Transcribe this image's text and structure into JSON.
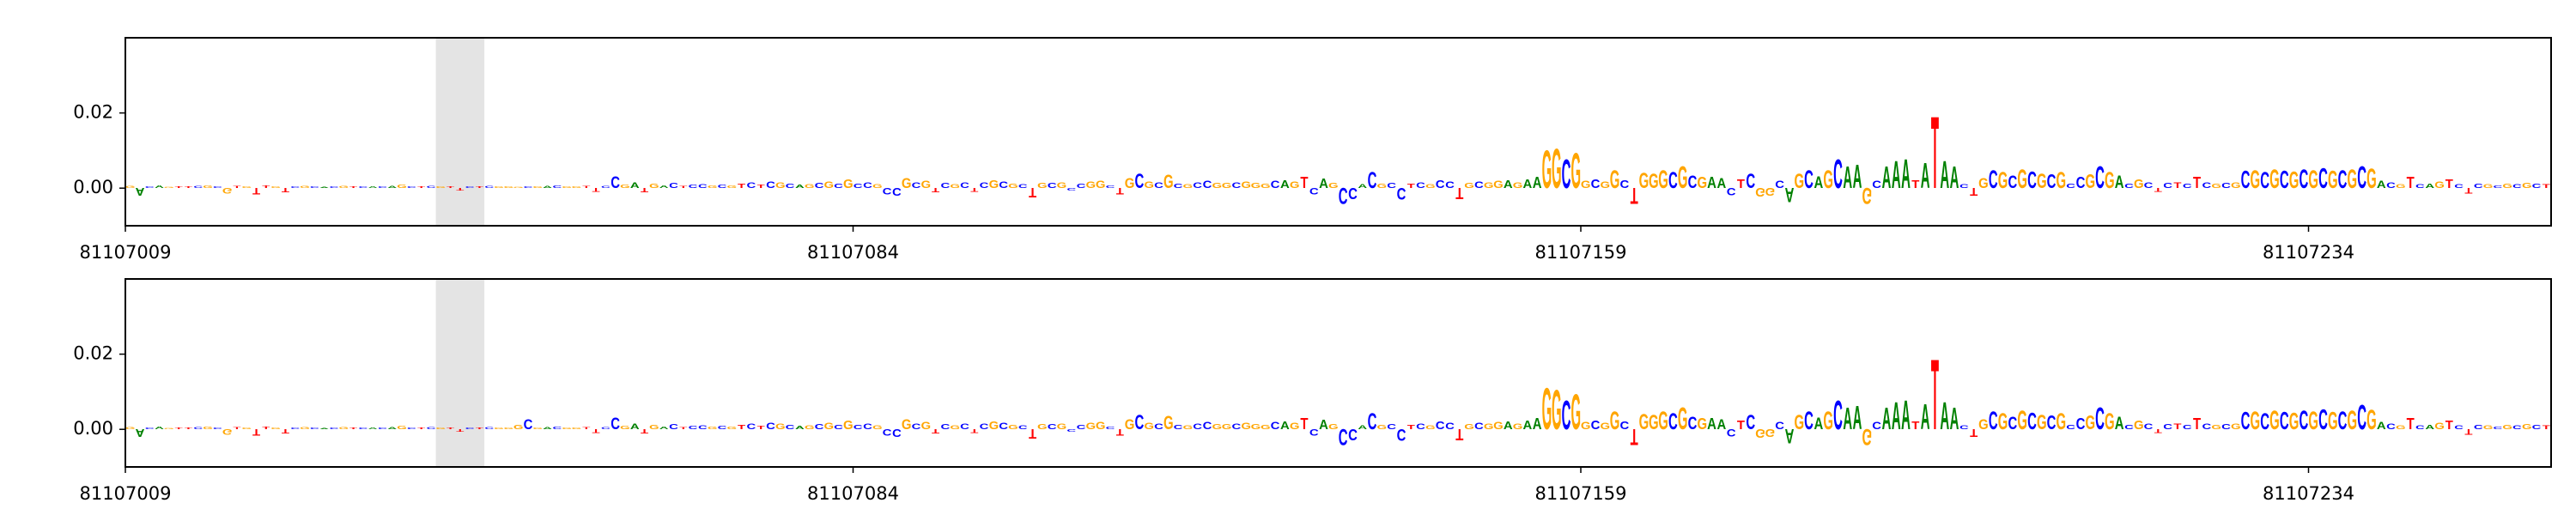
{
  "chart_data": {
    "type": "logo",
    "xlim": [
      81107009,
      81107259
    ],
    "xticks": [
      81107009,
      81107084,
      81107159,
      81107234
    ],
    "ylim": [
      -0.01,
      0.04
    ],
    "yticks": [
      {
        "value": 0,
        "label": "0.00"
      },
      {
        "value": 0.02,
        "label": "0.02"
      }
    ],
    "highlight": [
      81107041,
      81107046
    ],
    "colors": {
      "A": "#008000",
      "C": "#0000ff",
      "G": "#ffa500",
      "T": "#ff0000"
    },
    "letters": [
      "G",
      "A",
      "C",
      "A",
      "G",
      "T",
      "T",
      "C",
      "G",
      "C",
      "G",
      "T",
      "G",
      "T",
      "T",
      "G",
      "T",
      "C",
      "G",
      "C",
      "A",
      "C",
      "G",
      "T",
      "C",
      "A",
      "C",
      "A",
      "G",
      "C",
      "T",
      "C",
      "G",
      "T",
      "T",
      "C",
      "T",
      "C",
      "G",
      "G",
      "G",
      "C",
      "G",
      "A",
      "C",
      "G",
      "G",
      "T",
      "T",
      "C",
      "C",
      "G",
      "A",
      "T",
      "G",
      "A",
      "C",
      "T",
      "C",
      "C",
      "G",
      "C",
      "G",
      "T",
      "C",
      "T",
      "C",
      "G",
      "C",
      "A",
      "G",
      "C",
      "G",
      "C",
      "G",
      "C",
      "C",
      "G",
      "C",
      "C",
      "G",
      "C",
      "G",
      "T",
      "C",
      "G",
      "C",
      "T",
      "C",
      "G",
      "C",
      "G",
      "C",
      "T",
      "G",
      "C",
      "G",
      "C",
      "C",
      "G",
      "G",
      "C",
      "T",
      "G",
      "C",
      "G",
      "C",
      "G",
      "C",
      "G",
      "C",
      "C",
      "G",
      "G",
      "C",
      "G",
      "G",
      "G",
      "C",
      "A",
      "G",
      "T",
      "C",
      "A",
      "G",
      "C",
      "C",
      "A",
      "C",
      "G",
      "C",
      "C",
      "T",
      "C",
      "G",
      "C",
      "C",
      "T",
      "G",
      "C",
      "G",
      "G",
      "A",
      "G",
      "A",
      "A",
      "G",
      "G",
      "C",
      "G",
      "G",
      "C",
      "G",
      "G",
      "C",
      "T",
      "G",
      "G",
      "G",
      "C",
      "G",
      "C",
      "G",
      "A",
      "A",
      "C",
      "T",
      "C",
      "G",
      "G",
      "C",
      "A",
      "G",
      "C",
      "A",
      "G",
      "C",
      "A",
      "A",
      "G",
      "C",
      "A",
      "A",
      "A",
      "T",
      "A",
      "T",
      "A",
      "A",
      "C",
      "T",
      "G",
      "C",
      "G",
      "C",
      "G",
      "C",
      "G",
      "C",
      "G",
      "C",
      "C",
      "G",
      "C",
      "G",
      "A",
      "C",
      "G",
      "C",
      "T",
      "C",
      "T",
      "C",
      "T",
      "C",
      "G",
      "C",
      "G",
      "C",
      "G",
      "C",
      "G",
      "C",
      "G",
      "C",
      "G",
      "C",
      "G",
      "C",
      "G",
      "C",
      "G",
      "A",
      "C",
      "G",
      "T",
      "C",
      "A",
      "G",
      "T",
      "C",
      "T",
      "C",
      "G",
      "C",
      "G",
      "C",
      "G",
      "C",
      "T"
    ],
    "panels": [
      {
        "values": [
          0.0006,
          -0.0022,
          0.0004,
          0.0008,
          0.0003,
          0.0004,
          0.0005,
          0.0006,
          0.0007,
          0.0005,
          -0.0016,
          0.0006,
          0.0005,
          -0.0018,
          0.0007,
          0.0005,
          -0.0012,
          0.0005,
          0.0006,
          0.0004,
          0.0003,
          0.0005,
          0.0006,
          0.0004,
          0.0005,
          0.0005,
          0.0004,
          0.0006,
          0.0009,
          0.0004,
          0.0005,
          0.0006,
          0.0004,
          0.0005,
          -0.0008,
          0.0005,
          0.0004,
          0.0006,
          0.0005,
          0.0004,
          0.0003,
          0.0005,
          0.0004,
          0.0006,
          0.0007,
          0.0005,
          0.0004,
          0.0006,
          -0.0011,
          0.0006,
          0.0032,
          0.0009,
          0.0015,
          -0.0012,
          0.0012,
          0.0008,
          0.0014,
          0.0006,
          0.0009,
          0.0011,
          0.0007,
          0.0009,
          0.0008,
          0.0012,
          0.0015,
          0.0009,
          0.0018,
          0.0016,
          0.0012,
          0.0009,
          0.0011,
          0.0013,
          0.0019,
          0.0012,
          0.0024,
          0.0012,
          0.0016,
          0.001,
          -0.0018,
          -0.0022,
          0.0028,
          0.0015,
          0.002,
          -0.0012,
          0.0014,
          0.0011,
          0.0016,
          -0.001,
          0.0015,
          0.0022,
          0.0018,
          0.0012,
          0.001,
          -0.0026,
          0.0014,
          0.0013,
          0.0015,
          -0.0008,
          0.0012,
          0.0018,
          0.002,
          0.0008,
          -0.0018,
          0.0028,
          0.004,
          0.0018,
          0.0016,
          0.0037,
          0.0012,
          0.001,
          0.0015,
          0.002,
          0.0013,
          0.0014,
          0.0016,
          0.0019,
          0.0014,
          0.0012,
          0.002,
          0.0022,
          0.0018,
          0.003,
          -0.0018,
          0.0026,
          0.0013,
          -0.0045,
          -0.003,
          0.001,
          0.0045,
          0.0012,
          0.0014,
          -0.0032,
          0.0012,
          0.0015,
          0.001,
          0.0022,
          0.0018,
          -0.003,
          0.0014,
          0.0018,
          0.0015,
          0.002,
          0.0022,
          0.0016,
          0.0024,
          0.003,
          0.0105,
          0.011,
          0.008,
          0.0098,
          0.002,
          0.0025,
          0.0018,
          0.005,
          0.0022,
          -0.0045,
          0.0042,
          0.004,
          0.005,
          0.0045,
          0.006,
          0.0035,
          0.003,
          0.003,
          0.0028,
          -0.002,
          0.0025,
          0.004,
          -0.0025,
          -0.0022,
          0.002,
          -0.004,
          0.004,
          0.005,
          0.0032,
          0.005,
          0.008,
          0.006,
          0.0065,
          -0.0045,
          0.002,
          0.006,
          0.0075,
          0.008,
          0.0022,
          0.007,
          0.02,
          0.0075,
          0.006,
          0.001,
          -0.0022,
          0.0028,
          0.005,
          0.0045,
          0.0035,
          0.0052,
          0.0046,
          0.004,
          0.0038,
          0.0045,
          0.0012,
          0.003,
          0.0038,
          0.006,
          0.0045,
          0.0035,
          0.0012,
          0.0025,
          0.0015,
          -0.001,
          0.0014,
          0.0016,
          0.0012,
          0.003,
          0.0015,
          0.0012,
          0.0014,
          0.0016,
          0.0048,
          0.005,
          0.0045,
          0.0052,
          0.0048,
          0.0046,
          0.0052,
          0.005,
          0.0055,
          0.0048,
          0.005,
          0.0052,
          0.006,
          0.0054,
          0.002,
          0.0015,
          0.001,
          0.003,
          0.001,
          0.0012,
          0.0018,
          0.0024,
          0.001,
          -0.0015,
          0.0012,
          0.001,
          0.0008,
          0.0012,
          0.001,
          0.0014,
          0.0012,
          0.001
        ]
      },
      {
        "values": [
          0.0006,
          -0.0022,
          0.0004,
          0.0008,
          0.0003,
          0.0004,
          0.0005,
          0.0006,
          0.0007,
          0.0005,
          -0.0016,
          0.0006,
          0.0005,
          -0.0018,
          0.0007,
          0.0005,
          -0.0012,
          0.0005,
          0.0006,
          0.0004,
          0.0003,
          0.0005,
          0.0006,
          0.0004,
          0.0005,
          0.0005,
          0.0004,
          0.0006,
          0.0009,
          0.0004,
          0.0005,
          0.0006,
          0.0004,
          0.0005,
          -0.0008,
          0.0005,
          0.0004,
          0.0006,
          0.0005,
          0.0004,
          0.0012,
          0.0028,
          0.0004,
          0.0006,
          0.0007,
          0.0005,
          0.0004,
          0.0006,
          -0.0011,
          0.0006,
          0.0032,
          0.0009,
          0.0015,
          -0.0012,
          0.0012,
          0.0008,
          0.0014,
          0.0006,
          0.0009,
          0.0011,
          0.0007,
          0.0009,
          0.0008,
          0.0012,
          0.0015,
          0.0009,
          0.0018,
          0.0016,
          0.0012,
          0.0009,
          0.0011,
          0.0013,
          0.0019,
          0.0012,
          0.0024,
          0.0012,
          0.0016,
          0.001,
          -0.0018,
          -0.0022,
          0.0028,
          0.0015,
          0.002,
          -0.0012,
          0.0014,
          0.0011,
          0.0016,
          -0.001,
          0.0015,
          0.0022,
          0.0018,
          0.0012,
          0.001,
          -0.0026,
          0.0014,
          0.0013,
          0.0015,
          -0.0008,
          0.0012,
          0.0018,
          0.002,
          0.0008,
          -0.0018,
          0.0028,
          0.004,
          0.0018,
          0.0016,
          0.0037,
          0.0012,
          0.001,
          0.0015,
          0.002,
          0.0013,
          0.0014,
          0.0016,
          0.0019,
          0.0014,
          0.0012,
          0.002,
          0.0022,
          0.0018,
          0.003,
          -0.0018,
          0.0026,
          0.0013,
          -0.0045,
          -0.003,
          0.001,
          0.0045,
          0.0012,
          0.0014,
          -0.0032,
          0.0012,
          0.0015,
          0.001,
          0.0022,
          0.0018,
          -0.003,
          0.0014,
          0.0018,
          0.0015,
          0.002,
          0.0022,
          0.0016,
          0.0024,
          0.003,
          0.0115,
          0.011,
          0.008,
          0.0098,
          0.002,
          0.0025,
          0.0018,
          0.005,
          0.0022,
          -0.0045,
          0.0042,
          0.004,
          0.005,
          0.0045,
          0.006,
          0.0035,
          0.003,
          0.003,
          0.0028,
          -0.002,
          0.0025,
          0.004,
          -0.0025,
          -0.0022,
          0.002,
          -0.004,
          0.004,
          0.005,
          0.0032,
          0.005,
          0.008,
          0.006,
          0.0065,
          -0.0045,
          0.002,
          0.006,
          0.0075,
          0.008,
          0.0022,
          0.007,
          0.0195,
          0.0075,
          0.006,
          0.001,
          -0.0022,
          0.0028,
          0.005,
          0.0045,
          0.0035,
          0.0052,
          0.0046,
          0.004,
          0.0038,
          0.0045,
          0.0012,
          0.003,
          0.0038,
          0.006,
          0.0045,
          0.0035,
          0.0012,
          0.0025,
          0.0015,
          -0.001,
          0.0014,
          0.0016,
          0.0012,
          0.003,
          0.0015,
          0.0012,
          0.0014,
          0.0016,
          0.0048,
          0.005,
          0.0045,
          0.0052,
          0.0048,
          0.0046,
          0.0052,
          0.005,
          0.0055,
          0.0048,
          0.005,
          0.0052,
          0.0068,
          0.0054,
          0.002,
          0.0015,
          0.001,
          0.003,
          0.001,
          0.0012,
          0.0018,
          0.0024,
          0.001,
          -0.0015,
          0.0012,
          0.001,
          0.0008,
          0.0012,
          0.001,
          0.0014,
          0.0012,
          0.001
        ]
      }
    ]
  }
}
